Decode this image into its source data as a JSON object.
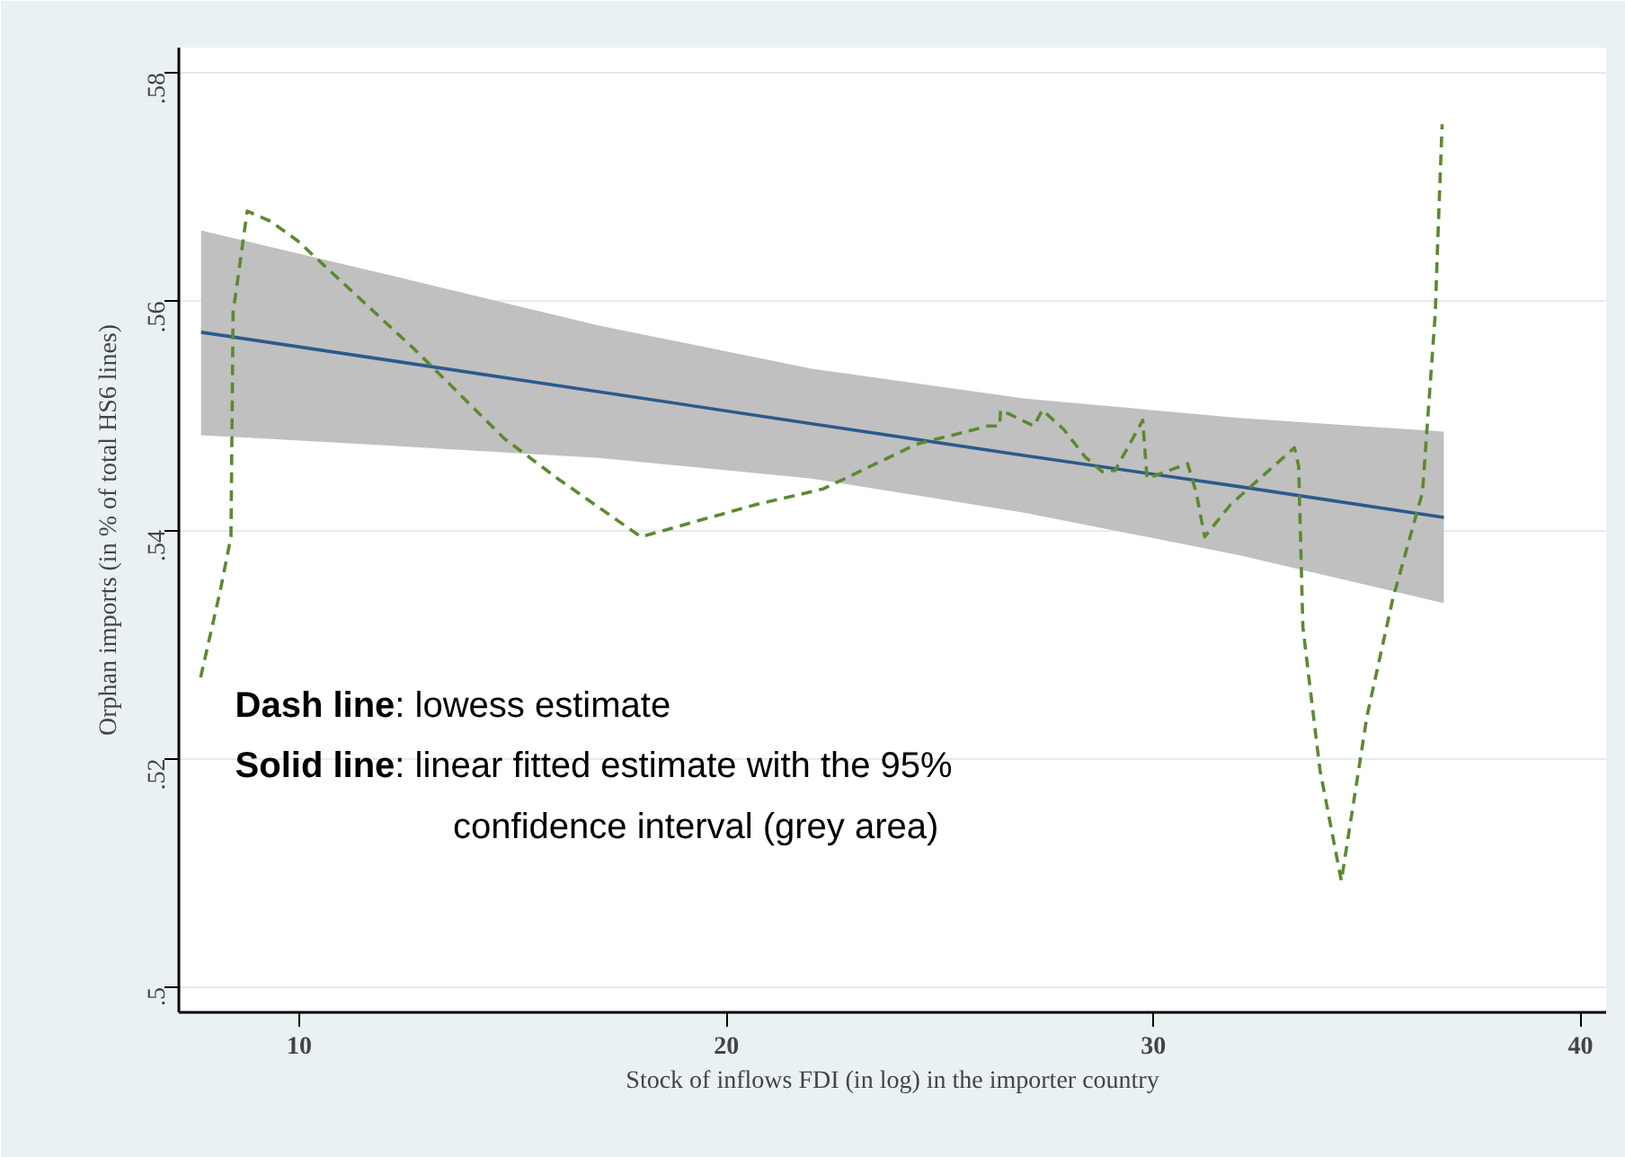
{
  "chart_data": {
    "type": "line",
    "xlabel": "Stock of inflows FDI (in log) in the importer country",
    "ylabel": "Orphan imports (in % of total HS6 lines)",
    "xlim": [
      7.18,
      40.6
    ],
    "ylim": [
      0.4978,
      0.5822
    ],
    "xticks": [
      10,
      20,
      30,
      40
    ],
    "yticks": [
      {
        "value": 0.5,
        "label": ".5"
      },
      {
        "value": 0.52,
        "label": ".52"
      },
      {
        "value": 0.54,
        "label": ".54"
      },
      {
        "value": 0.56,
        "label": ".56"
      },
      {
        "value": 0.58,
        "label": ".58"
      }
    ],
    "grid": "y",
    "annotations": [
      "Dash line: lowess estimate",
      "Solid line: linear fitted estimate with the 95% confidence interval (grey area)"
    ],
    "series": [
      {
        "color": "#5b8a2f",
        "line_style": "dashed",
        "x": [
          7.69,
          8.15,
          8.4,
          8.45,
          8.78,
          9.33,
          9.96,
          12.7,
          14.8,
          16.05,
          18.0,
          20.67,
          22.27,
          24.45,
          26.13,
          26.4,
          26.42,
          27.2,
          27.4,
          27.9,
          28.4,
          28.8,
          29.1,
          29.75,
          29.85,
          30.8,
          31.0,
          31.2,
          31.8,
          33.3,
          33.4,
          33.5,
          33.7,
          33.9,
          34.4,
          35.0,
          35.6,
          36.3,
          36.6,
          36.65,
          36.76
        ],
        "values": [
          0.5271,
          0.5347,
          0.5394,
          0.559,
          0.5679,
          0.567,
          0.5653,
          0.5558,
          0.548,
          0.5445,
          0.5394,
          0.5422,
          0.5436,
          0.5475,
          0.5491,
          0.5491,
          0.5505,
          0.5491,
          0.5505,
          0.5488,
          0.5464,
          0.5451,
          0.5452,
          0.5496,
          0.5445,
          0.5458,
          0.5433,
          0.5394,
          0.5422,
          0.5472,
          0.5456,
          0.5315,
          0.5252,
          0.519,
          0.5093,
          0.5237,
          0.5339,
          0.5433,
          0.559,
          0.5645,
          0.5755
        ]
      },
      {
        "color": "#2c5a8c",
        "line_style": "solid",
        "x": [
          7.7,
          12,
          17,
          22,
          27,
          32,
          36.8
        ],
        "values": [
          0.5573,
          0.5549,
          0.5521,
          0.5493,
          0.5465,
          0.5438,
          0.5411
        ],
        "lower": [
          0.5483,
          0.5474,
          0.5463,
          0.5445,
          0.5415,
          0.5378,
          0.5336
        ],
        "upper": [
          0.5662,
          0.5624,
          0.5579,
          0.5541,
          0.5515,
          0.5498,
          0.5486
        ]
      }
    ]
  }
}
